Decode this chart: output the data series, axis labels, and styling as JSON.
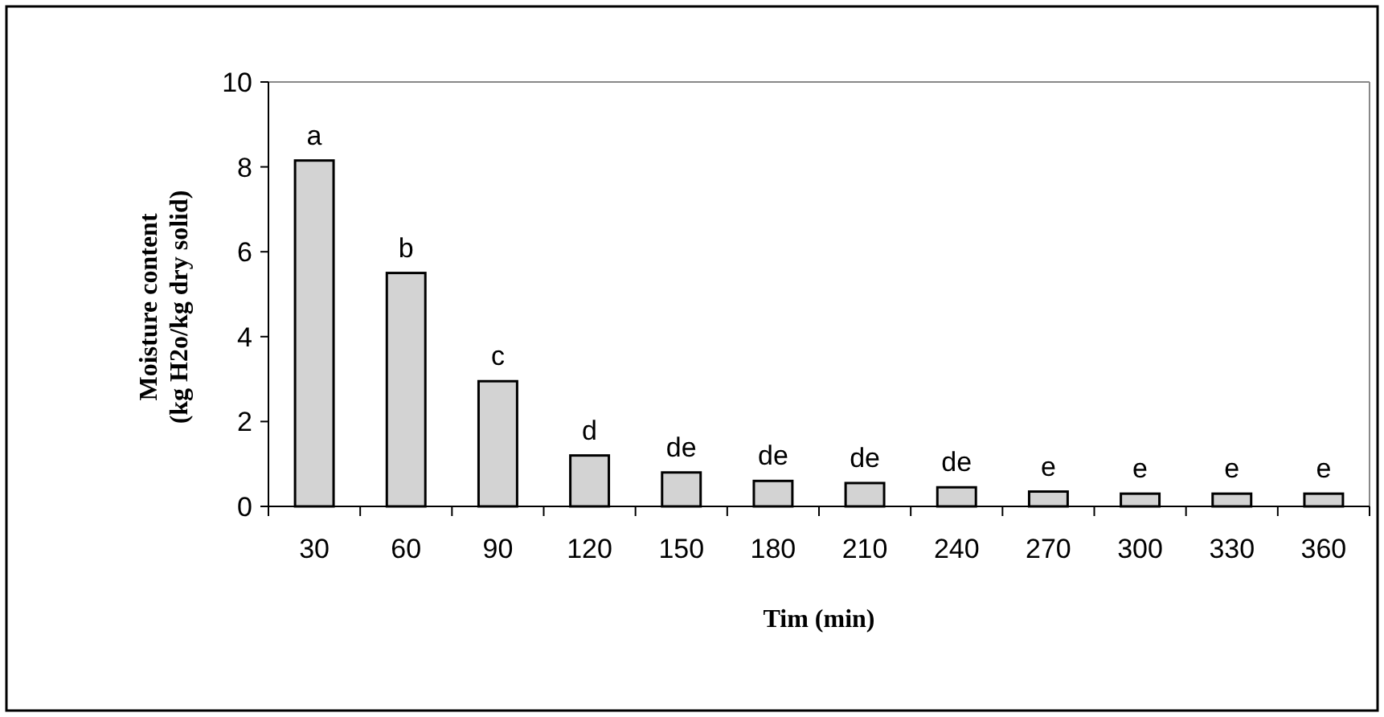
{
  "chart_data": {
    "type": "bar",
    "xlabel": "Tim (min)",
    "ylabel": "Moisture content\n(kg H2o/kg dry solid)",
    "categories": [
      "30",
      "60",
      "90",
      "120",
      "150",
      "180",
      "210",
      "240",
      "270",
      "300",
      "330",
      "360"
    ],
    "values": [
      8.15,
      5.5,
      2.95,
      1.2,
      0.8,
      0.6,
      0.55,
      0.45,
      0.35,
      0.3,
      0.3,
      0.3
    ],
    "color": "#d3d3d3",
    "ylim": [
      0,
      10
    ],
    "yticks": [
      0,
      2,
      4,
      6,
      8,
      10
    ],
    "grid": false,
    "annotations": [
      {
        "text": "a",
        "x": "30",
        "y": 8.15
      },
      {
        "text": "b",
        "x": "60",
        "y": 5.5
      },
      {
        "text": "c",
        "x": "90",
        "y": 2.95
      },
      {
        "text": "d",
        "x": "120",
        "y": 1.2
      },
      {
        "text": "de",
        "x": "150",
        "y": 0.8
      },
      {
        "text": "de",
        "x": "180",
        "y": 0.6
      },
      {
        "text": "de",
        "x": "210",
        "y": 0.55
      },
      {
        "text": "de",
        "x": "240",
        "y": 0.45
      },
      {
        "text": "e",
        "x": "270",
        "y": 0.35
      },
      {
        "text": "e",
        "x": "300",
        "y": 0.3
      },
      {
        "text": "e",
        "x": "330",
        "y": 0.3
      },
      {
        "text": "e",
        "x": "360",
        "y": 0.3
      }
    ]
  }
}
